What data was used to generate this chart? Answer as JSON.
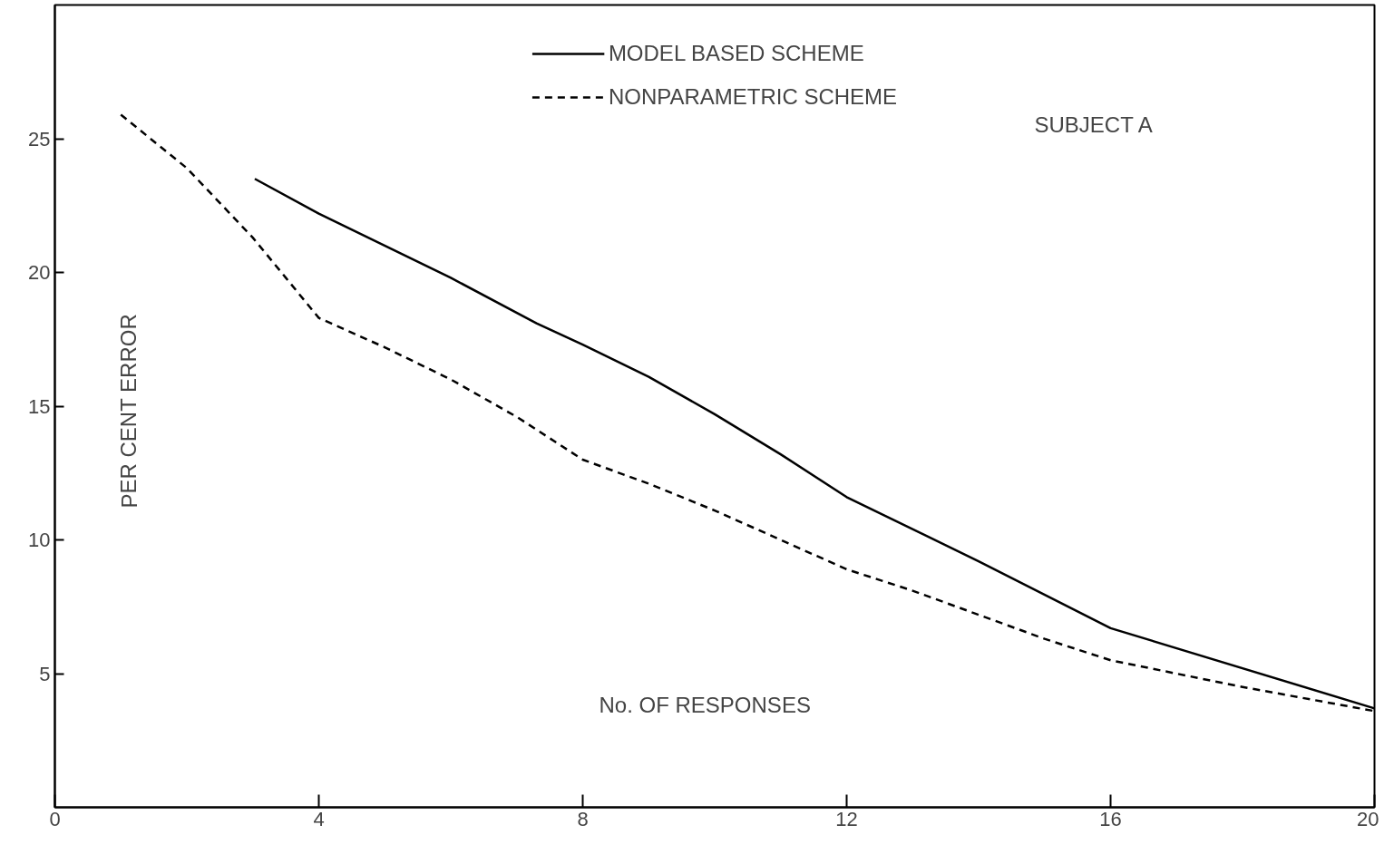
{
  "chart_data": {
    "type": "line",
    "xlabel": "No. OF RESPONSES",
    "ylabel": "PER CENT ERROR",
    "annotations": [
      "SUBJECT A"
    ],
    "xlim": [
      0,
      20
    ],
    "ylim": [
      0,
      30
    ],
    "xticks": [
      0,
      4,
      8,
      12,
      16,
      20
    ],
    "yticks": [
      5,
      10,
      15,
      20,
      25
    ],
    "grid": false,
    "legend": "top",
    "marker": "none",
    "series": [
      {
        "name": "MODEL BASED SCHEME",
        "color": "#000000",
        "line_style": "solid",
        "x": [
          3.03,
          4,
          6,
          7.3,
          8,
          9,
          10,
          11,
          12,
          14,
          16,
          20
        ],
        "values": [
          23.5,
          22.2,
          19.8,
          18.1,
          17.3,
          16.1,
          14.7,
          13.2,
          11.6,
          9.2,
          6.7,
          3.7
        ]
      },
      {
        "name": "NONPARAMETRIC SCHEME",
        "color": "#000000",
        "line_style": "dashed",
        "x": [
          1,
          2,
          3,
          3.5,
          4,
          5,
          6,
          7,
          8,
          9,
          10,
          11,
          12,
          13,
          14,
          15,
          16,
          18,
          20
        ],
        "values": [
          25.9,
          23.9,
          21.3,
          19.8,
          18.3,
          17.2,
          16.0,
          14.6,
          13.0,
          12.1,
          11.1,
          10.0,
          8.9,
          8.1,
          7.2,
          6.3,
          5.5,
          4.5,
          3.6
        ]
      }
    ]
  }
}
